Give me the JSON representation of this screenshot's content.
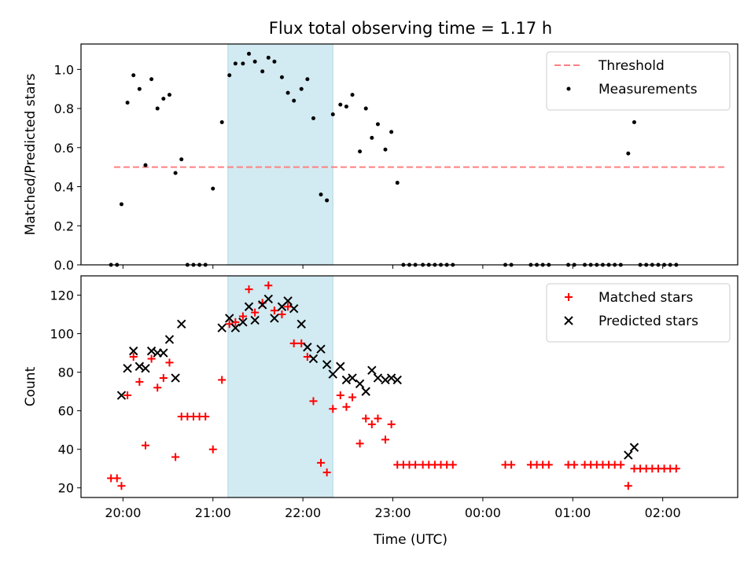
{
  "figure": {
    "title": "Flux total observing time = 1.17 h",
    "xlabel": "Time (UTC)",
    "colors": {
      "shade": "#add8e6",
      "threshold": "#ff8080",
      "measurement": "#000000",
      "matched": "#ff0000",
      "predicted": "#000000"
    }
  },
  "chart_data": [
    {
      "type": "scatter",
      "ylabel": "Matched/Predicted stars",
      "xlim": [
        "19:32",
        "02:50"
      ],
      "ylim": [
        0,
        1.13
      ],
      "x_ticks": [
        "20:00",
        "21:00",
        "22:00",
        "23:00",
        "00:00",
        "01:00",
        "02:00"
      ],
      "y_ticks": [
        "0.0",
        "0.2",
        "0.4",
        "0.6",
        "0.8",
        "1.0"
      ],
      "shaded_interval": [
        "21:10",
        "22:20"
      ],
      "legend_position": "top-right",
      "threshold": {
        "name": "Threshold",
        "y": 0.5,
        "x_range": [
          "19:54",
          "02:42"
        ],
        "style": "dashed"
      },
      "series": [
        {
          "name": "Measurements",
          "marker": "dot",
          "points": [
            [
              "19:52",
              0.0
            ],
            [
              "19:56",
              0.0
            ],
            [
              "19:59",
              0.31
            ],
            [
              "20:03",
              0.83
            ],
            [
              "20:07",
              0.97
            ],
            [
              "20:11",
              0.9
            ],
            [
              "20:15",
              0.51
            ],
            [
              "20:19",
              0.95
            ],
            [
              "20:23",
              0.8
            ],
            [
              "20:27",
              0.85
            ],
            [
              "20:31",
              0.87
            ],
            [
              "20:35",
              0.47
            ],
            [
              "20:39",
              0.54
            ],
            [
              "20:43",
              0.0
            ],
            [
              "20:47",
              0.0
            ],
            [
              "20:51",
              0.0
            ],
            [
              "20:55",
              0.0
            ],
            [
              "21:00",
              0.39
            ],
            [
              "21:06",
              0.73
            ],
            [
              "21:11",
              0.97
            ],
            [
              "21:15",
              1.03
            ],
            [
              "21:20",
              1.03
            ],
            [
              "21:24",
              1.08
            ],
            [
              "21:28",
              1.04
            ],
            [
              "21:33",
              0.99
            ],
            [
              "21:37",
              1.06
            ],
            [
              "21:41",
              1.04
            ],
            [
              "21:46",
              0.96
            ],
            [
              "21:50",
              0.88
            ],
            [
              "21:54",
              0.84
            ],
            [
              "21:59",
              0.9
            ],
            [
              "22:03",
              0.95
            ],
            [
              "22:07",
              0.75
            ],
            [
              "22:12",
              0.36
            ],
            [
              "22:16",
              0.33
            ],
            [
              "22:20",
              0.77
            ],
            [
              "22:25",
              0.82
            ],
            [
              "22:29",
              0.81
            ],
            [
              "22:33",
              0.87
            ],
            [
              "22:38",
              0.58
            ],
            [
              "22:42",
              0.8
            ],
            [
              "22:46",
              0.65
            ],
            [
              "22:50",
              0.72
            ],
            [
              "22:55",
              0.59
            ],
            [
              "22:59",
              0.68
            ],
            [
              "23:03",
              0.42
            ],
            [
              "23:07",
              0.0
            ],
            [
              "23:11",
              0.0
            ],
            [
              "23:15",
              0.0
            ],
            [
              "23:20",
              0.0
            ],
            [
              "23:24",
              0.0
            ],
            [
              "23:28",
              0.0
            ],
            [
              "23:32",
              0.0
            ],
            [
              "23:36",
              0.0
            ],
            [
              "23:40",
              0.0
            ],
            [
              "00:15",
              0.0
            ],
            [
              "00:19",
              0.0
            ],
            [
              "00:32",
              0.0
            ],
            [
              "00:36",
              0.0
            ],
            [
              "00:40",
              0.0
            ],
            [
              "00:44",
              0.0
            ],
            [
              "00:57",
              0.0
            ],
            [
              "01:01",
              0.0
            ],
            [
              "01:08",
              0.0
            ],
            [
              "01:12",
              0.0
            ],
            [
              "01:16",
              0.0
            ],
            [
              "01:20",
              0.0
            ],
            [
              "01:24",
              0.0
            ],
            [
              "01:28",
              0.0
            ],
            [
              "01:32",
              0.0
            ],
            [
              "01:37",
              0.57
            ],
            [
              "01:41",
              0.73
            ],
            [
              "01:45",
              0.0
            ],
            [
              "01:49",
              0.0
            ],
            [
              "01:53",
              0.0
            ],
            [
              "01:57",
              0.0
            ],
            [
              "02:01",
              0.0
            ],
            [
              "02:05",
              0.0
            ],
            [
              "02:09",
              0.0
            ]
          ]
        }
      ]
    },
    {
      "type": "scatter",
      "ylabel": "Count",
      "xlim": [
        "19:32",
        "02:50"
      ],
      "ylim": [
        15,
        130
      ],
      "x_ticks": [
        "20:00",
        "21:00",
        "22:00",
        "23:00",
        "00:00",
        "01:00",
        "02:00"
      ],
      "y_ticks": [
        "20",
        "40",
        "60",
        "80",
        "100",
        "120"
      ],
      "shaded_interval": [
        "21:10",
        "22:20"
      ],
      "legend_position": "top-right",
      "series": [
        {
          "name": "Matched stars",
          "marker": "plus",
          "points": [
            [
              "19:52",
              25
            ],
            [
              "19:56",
              25
            ],
            [
              "19:59",
              21
            ],
            [
              "20:03",
              68
            ],
            [
              "20:07",
              88
            ],
            [
              "20:11",
              75
            ],
            [
              "20:15",
              42
            ],
            [
              "20:19",
              87
            ],
            [
              "20:23",
              72
            ],
            [
              "20:27",
              77
            ],
            [
              "20:31",
              85
            ],
            [
              "20:35",
              36
            ],
            [
              "20:39",
              57
            ],
            [
              "20:43",
              57
            ],
            [
              "20:47",
              57
            ],
            [
              "20:51",
              57
            ],
            [
              "20:55",
              57
            ],
            [
              "21:00",
              40
            ],
            [
              "21:06",
              76
            ],
            [
              "21:11",
              105
            ],
            [
              "21:15",
              106
            ],
            [
              "21:20",
              109
            ],
            [
              "21:24",
              123
            ],
            [
              "21:28",
              111
            ],
            [
              "21:33",
              116
            ],
            [
              "21:37",
              125
            ],
            [
              "21:41",
              112
            ],
            [
              "21:46",
              110
            ],
            [
              "21:50",
              114
            ],
            [
              "21:54",
              95
            ],
            [
              "21:59",
              95
            ],
            [
              "22:03",
              88
            ],
            [
              "22:07",
              65
            ],
            [
              "22:12",
              33
            ],
            [
              "22:16",
              28
            ],
            [
              "22:20",
              61
            ],
            [
              "22:25",
              68
            ],
            [
              "22:29",
              62
            ],
            [
              "22:33",
              67
            ],
            [
              "22:38",
              43
            ],
            [
              "22:42",
              56
            ],
            [
              "22:46",
              53
            ],
            [
              "22:50",
              56
            ],
            [
              "22:55",
              45
            ],
            [
              "22:59",
              53
            ],
            [
              "23:03",
              32
            ],
            [
              "23:07",
              32
            ],
            [
              "23:11",
              32
            ],
            [
              "23:15",
              32
            ],
            [
              "23:20",
              32
            ],
            [
              "23:24",
              32
            ],
            [
              "23:28",
              32
            ],
            [
              "23:32",
              32
            ],
            [
              "23:36",
              32
            ],
            [
              "23:40",
              32
            ],
            [
              "00:15",
              32
            ],
            [
              "00:19",
              32
            ],
            [
              "00:32",
              32
            ],
            [
              "00:36",
              32
            ],
            [
              "00:40",
              32
            ],
            [
              "00:44",
              32
            ],
            [
              "00:57",
              32
            ],
            [
              "01:01",
              32
            ],
            [
              "01:08",
              32
            ],
            [
              "01:12",
              32
            ],
            [
              "01:16",
              32
            ],
            [
              "01:20",
              32
            ],
            [
              "01:24",
              32
            ],
            [
              "01:28",
              32
            ],
            [
              "01:32",
              32
            ],
            [
              "01:37",
              21
            ],
            [
              "01:41",
              30
            ],
            [
              "01:45",
              30
            ],
            [
              "01:49",
              30
            ],
            [
              "01:53",
              30
            ],
            [
              "01:57",
              30
            ],
            [
              "02:01",
              30
            ],
            [
              "02:05",
              30
            ],
            [
              "02:09",
              30
            ]
          ]
        },
        {
          "name": "Predicted stars",
          "marker": "x",
          "points": [
            [
              "19:59",
              68
            ],
            [
              "20:03",
              82
            ],
            [
              "20:07",
              91
            ],
            [
              "20:11",
              83
            ],
            [
              "20:15",
              82
            ],
            [
              "20:19",
              91
            ],
            [
              "20:23",
              90
            ],
            [
              "20:27",
              90
            ],
            [
              "20:31",
              97
            ],
            [
              "20:35",
              77
            ],
            [
              "20:39",
              105
            ],
            [
              "21:06",
              103
            ],
            [
              "21:11",
              108
            ],
            [
              "21:15",
              103
            ],
            [
              "21:20",
              106
            ],
            [
              "21:24",
              114
            ],
            [
              "21:28",
              107
            ],
            [
              "21:33",
              115
            ],
            [
              "21:37",
              118
            ],
            [
              "21:41",
              108
            ],
            [
              "21:46",
              114
            ],
            [
              "21:50",
              117
            ],
            [
              "21:54",
              113
            ],
            [
              "21:59",
              105
            ],
            [
              "22:03",
              93
            ],
            [
              "22:07",
              87
            ],
            [
              "22:12",
              92
            ],
            [
              "22:16",
              84
            ],
            [
              "22:20",
              79
            ],
            [
              "22:25",
              83
            ],
            [
              "22:29",
              76
            ],
            [
              "22:33",
              77
            ],
            [
              "22:38",
              74
            ],
            [
              "22:42",
              70
            ],
            [
              "22:46",
              81
            ],
            [
              "22:50",
              77
            ],
            [
              "22:55",
              76
            ],
            [
              "22:59",
              77
            ],
            [
              "23:03",
              76
            ],
            [
              "01:37",
              37
            ],
            [
              "01:41",
              41
            ]
          ]
        }
      ]
    }
  ]
}
